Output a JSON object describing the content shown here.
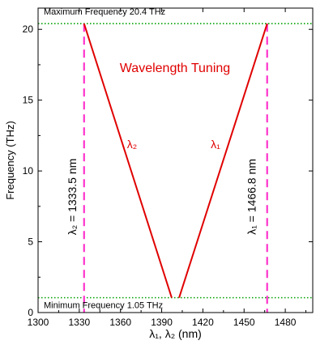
{
  "chart_data": {
    "type": "line",
    "xlabel": "λ₁, λ₂ (nm)",
    "ylabel": "Frequency (THz)",
    "xlim": [
      1300,
      1500
    ],
    "ylim": [
      0,
      21.5
    ],
    "x_ticks": [
      1300,
      1330,
      1360,
      1390,
      1420,
      1450,
      1480
    ],
    "y_ticks": [
      0,
      5,
      10,
      15,
      20
    ],
    "grid": false,
    "series": [
      {
        "name": "λ₂",
        "color": "#e00000",
        "x": [
          1333.5,
          1397.3
        ],
        "y": [
          20.4,
          1.05
        ]
      },
      {
        "name": "λ₁",
        "color": "#e00000",
        "x": [
          1402.7,
          1466.8
        ],
        "y": [
          1.05,
          20.4
        ]
      }
    ],
    "reference_lines": {
      "horizontal": [
        {
          "y": 20.4,
          "label": "Maximum Frequency 20.4 THz",
          "color": "#00a000",
          "style": "dotted"
        },
        {
          "y": 1.05,
          "label": "Minimum Frequency 1.05 THz",
          "color": "#00a000",
          "style": "dotted"
        }
      ],
      "vertical": [
        {
          "x": 1333.5,
          "label": "λ₂ = 1333.5 nm",
          "color": "#ff33cc",
          "style": "dashed"
        },
        {
          "x": 1466.8,
          "label": "λ₁ = 1466.8 nm",
          "color": "#ff33cc",
          "style": "dashed"
        }
      ]
    },
    "annotations": [
      {
        "text": "Wavelength Tuning",
        "color": "#e00000"
      }
    ]
  }
}
